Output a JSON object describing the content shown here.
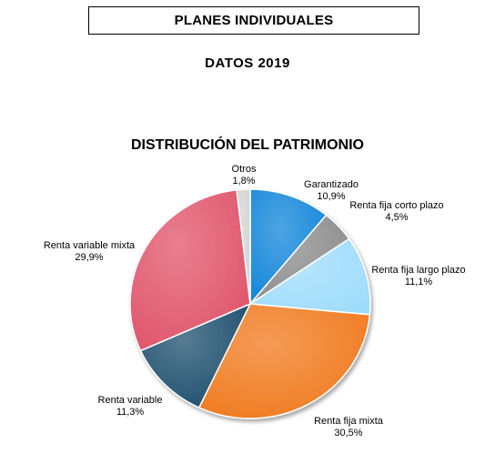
{
  "header": {
    "title": "PLANES INDIVIDUALES"
  },
  "subheader": {
    "text": "DATOS 2019"
  },
  "chart_data": {
    "type": "pie",
    "title": "DISTRIBUCIÓN DEL PATRIMONIO",
    "slices": [
      {
        "label": "Garantizado",
        "value_label": "10,9%",
        "value": 10.9,
        "color": "#1185d9"
      },
      {
        "label": "Renta fija corto plazo",
        "value_label": "4,5%",
        "value": 4.5,
        "color": "#8c8c8c"
      },
      {
        "label": "Renta fija largo plazo",
        "value_label": "11,1%",
        "value": 11.1,
        "color": "#9fdcfb"
      },
      {
        "label": "Renta fija mixta",
        "value_label": "30,5%",
        "value": 30.5,
        "color": "#f07a1e"
      },
      {
        "label": "Renta variable",
        "value_label": "11,3%",
        "value": 11.3,
        "color": "#1d4f6e"
      },
      {
        "label": "Renta variable mixta",
        "value_label": "29,9%",
        "value": 29.9,
        "color": "#e0546a"
      },
      {
        "label": "Otros",
        "value_label": "1,8%",
        "value": 1.8,
        "color": "#d3d3d3"
      }
    ]
  }
}
